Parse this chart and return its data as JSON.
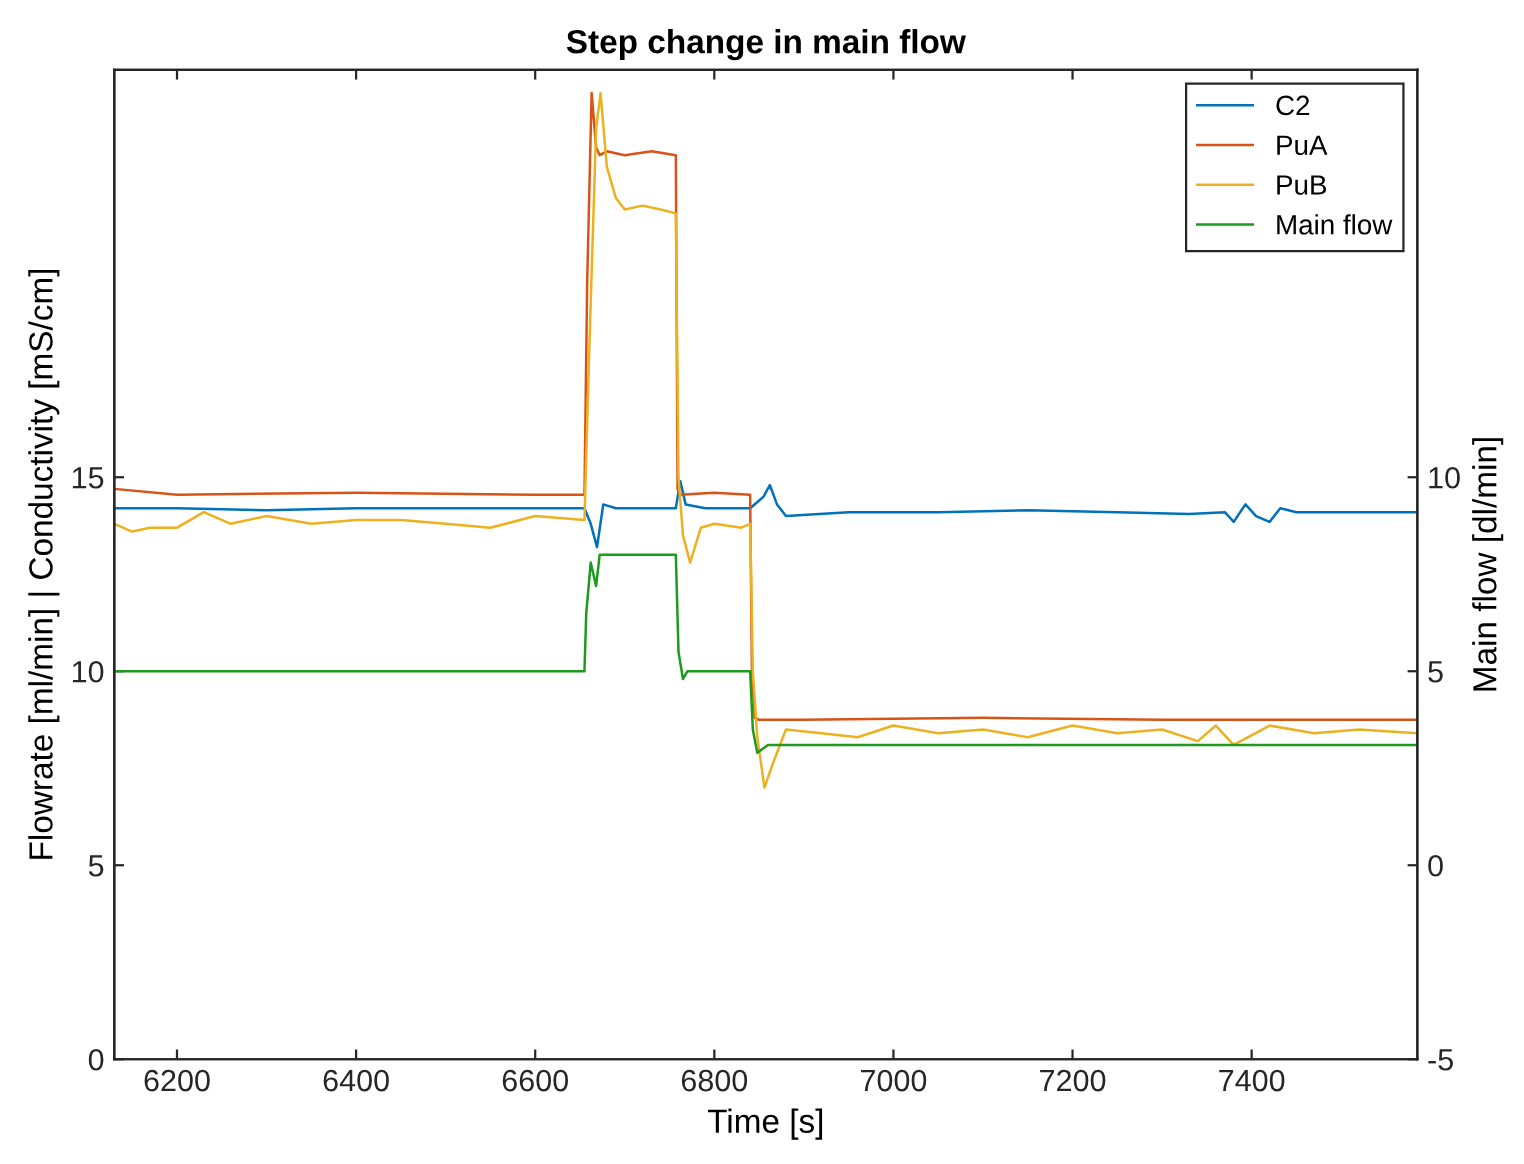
{
  "chart_data": {
    "type": "line",
    "title": "Step change in main flow",
    "xlabel": "Time [s]",
    "ylabel": "Flowrate [ml/min] | Conductivity [mS/cm]",
    "y2label": "Main flow [dl/min]",
    "xlim": [
      6130,
      7585
    ],
    "xticks": [
      6200,
      6400,
      6600,
      6800,
      7000,
      7200,
      7400
    ],
    "ylim": [
      0,
      25.5
    ],
    "yticks": [
      0,
      5,
      10,
      15
    ],
    "y2lim": [
      -5,
      20.5
    ],
    "y2ticks": [
      -5,
      0,
      5,
      10
    ],
    "grid": false,
    "legend": "top right",
    "line_style": "solid",
    "marker": "none",
    "series": [
      {
        "name": "C2",
        "color": "#0072bd",
        "x": [
          6130,
          6200,
          6300,
          6400,
          6500,
          6600,
          6655,
          6662,
          6669,
          6676,
          6690,
          6720,
          6757,
          6762,
          6768,
          6790,
          6840,
          6855,
          6862,
          6870,
          6880,
          6950,
          7050,
          7150,
          7250,
          7330,
          7370,
          7380,
          7393,
          7405,
          7420,
          7432,
          7450,
          7500,
          7585
        ],
        "values": [
          14.2,
          14.2,
          14.15,
          14.2,
          14.2,
          14.2,
          14.2,
          13.8,
          13.2,
          14.3,
          14.2,
          14.2,
          14.2,
          14.9,
          14.3,
          14.2,
          14.2,
          14.5,
          14.8,
          14.3,
          14.0,
          14.1,
          14.1,
          14.15,
          14.1,
          14.05,
          14.1,
          13.85,
          14.3,
          14.0,
          13.85,
          14.2,
          14.1,
          14.1,
          14.1
        ]
      },
      {
        "name": "PuA",
        "color": "#d95319",
        "x": [
          6130,
          6200,
          6400,
          6600,
          6655,
          6658,
          6663,
          6668,
          6672,
          6680,
          6700,
          6730,
          6757,
          6759,
          6762,
          6800,
          6840,
          6842,
          6845,
          6850,
          6900,
          7100,
          7300,
          7585
        ],
        "values": [
          14.7,
          14.55,
          14.6,
          14.55,
          14.55,
          20,
          24.9,
          23.5,
          23.3,
          23.4,
          23.3,
          23.4,
          23.3,
          14.7,
          14.55,
          14.6,
          14.55,
          10,
          8.8,
          8.75,
          8.75,
          8.8,
          8.75,
          8.75
        ]
      },
      {
        "name": "PuB",
        "color": "#edb120",
        "x": [
          6130,
          6150,
          6170,
          6200,
          6230,
          6260,
          6300,
          6350,
          6400,
          6450,
          6500,
          6550,
          6600,
          6655,
          6660,
          6668,
          6673,
          6680,
          6690,
          6700,
          6720,
          6740,
          6757,
          6760,
          6765,
          6773,
          6785,
          6800,
          6830,
          6840,
          6843,
          6848,
          6856,
          6865,
          6880,
          6920,
          6960,
          7000,
          7050,
          7100,
          7150,
          7200,
          7250,
          7300,
          7340,
          7360,
          7380,
          7420,
          7470,
          7520,
          7585
        ],
        "values": [
          13.8,
          13.6,
          13.7,
          13.7,
          14.1,
          13.8,
          14.0,
          13.8,
          13.9,
          13.9,
          13.8,
          13.7,
          14.0,
          13.9,
          18,
          24,
          24.9,
          23,
          22.2,
          21.9,
          22.0,
          21.9,
          21.8,
          15,
          13.5,
          12.8,
          13.7,
          13.8,
          13.7,
          13.8,
          10,
          8.3,
          7.0,
          7.6,
          8.5,
          8.4,
          8.3,
          8.6,
          8.4,
          8.5,
          8.3,
          8.6,
          8.4,
          8.5,
          8.2,
          8.6,
          8.1,
          8.6,
          8.4,
          8.5,
          8.4
        ]
      },
      {
        "name": "Main flow",
        "color": "#1e9a1e",
        "axis": "y2",
        "x": [
          6130,
          6655,
          6657,
          6662,
          6668,
          6672,
          6700,
          6757,
          6760,
          6765,
          6770,
          6840,
          6843,
          6848,
          6860,
          7585
        ],
        "values": [
          5.0,
          5.0,
          6.5,
          7.8,
          7.2,
          8.0,
          8.0,
          8.0,
          5.5,
          4.8,
          5.0,
          5.0,
          3.5,
          2.9,
          3.1,
          3.1
        ]
      }
    ]
  }
}
